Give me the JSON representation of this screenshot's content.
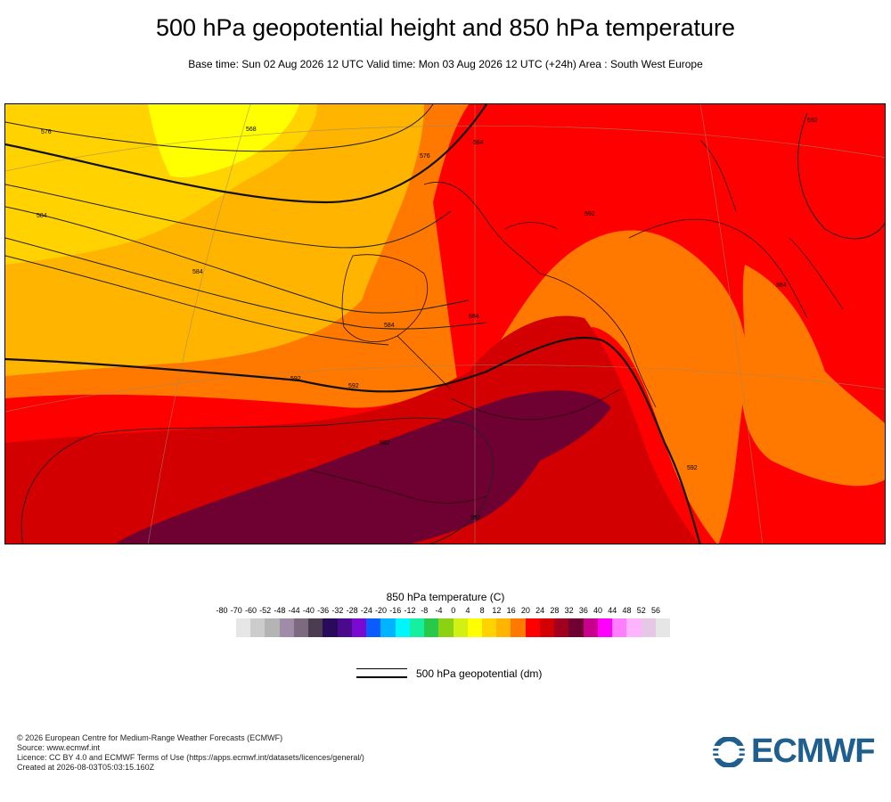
{
  "header": {
    "title": "500 hPa geopotential height and 850 hPa temperature",
    "subtitle": "Base time: Sun 02 Aug 2026 12 UTC Valid time: Mon 03 Aug 2026 12 UTC (+24h) Area : South West Europe"
  },
  "map": {
    "contour_labels": [
      "576",
      "568",
      "584",
      "576",
      "584",
      "592",
      "592",
      "584",
      "584",
      "584",
      "592",
      "592",
      "584",
      "592",
      "592",
      "592"
    ]
  },
  "legend": {
    "temperature_title": "850 hPa temperature (C)",
    "ticks": [
      "-80",
      "-70",
      "-60",
      "-52",
      "-48",
      "-44",
      "-40",
      "-36",
      "-32",
      "-28",
      "-24",
      "-20",
      "-16",
      "-12",
      "-8",
      "-4",
      "0",
      "4",
      "8",
      "12",
      "16",
      "20",
      "24",
      "28",
      "32",
      "36",
      "40",
      "44",
      "48",
      "52",
      "56"
    ],
    "colors": [
      "#e6e6e6",
      "#cccccc",
      "#b4b4b4",
      "#a08ca8",
      "#7d6a80",
      "#4b3c50",
      "#2a0a5a",
      "#4b0a8c",
      "#7a0ad2",
      "#0a5cff",
      "#00b4ff",
      "#00f5ff",
      "#14f0a0",
      "#28c84b",
      "#8cd214",
      "#d2f014",
      "#ffff00",
      "#ffd200",
      "#ffb400",
      "#ff7800",
      "#ff0000",
      "#d20000",
      "#a0001e",
      "#6e0032",
      "#c8008c",
      "#ff00ff",
      "#ff7dff",
      "#ffb4ff",
      "#e6c8e6",
      "#e6e6e6"
    ],
    "geopotential_label": "500 hPa geopotential (dm)"
  },
  "credits": {
    "line1": "© 2026 European Centre for Medium-Range Weather Forecasts (ECMWF)",
    "line2": "Source: www.ecmwf.int",
    "line3": "Licence: CC BY 4.0 and ECMWF Terms of Use (https://apps.ecmwf.int/datasets/licences/general/)",
    "line4": "Created at 2026-08-03T05:03:15.160Z"
  },
  "logo": {
    "text": "ECMWF",
    "color": "#1e5f8f"
  }
}
